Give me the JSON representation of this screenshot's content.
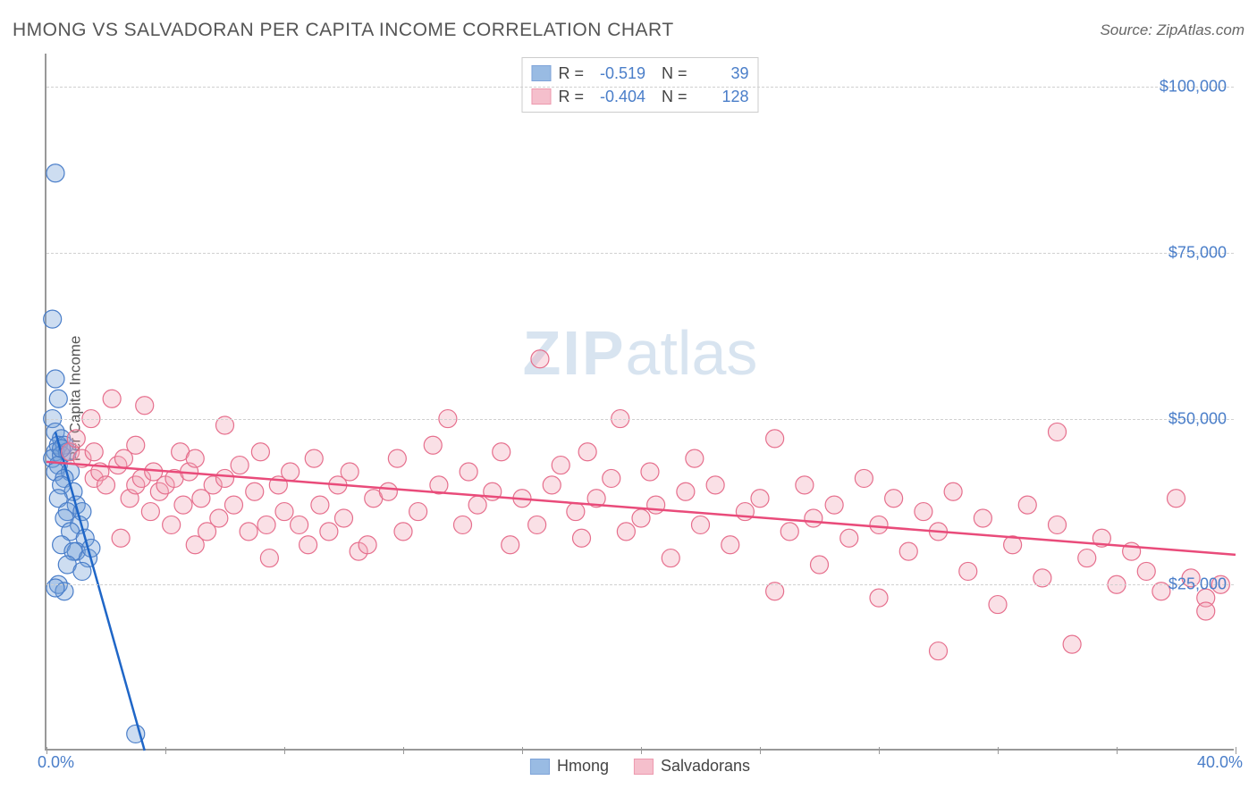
{
  "title": "HMONG VS SALVADORAN PER CAPITA INCOME CORRELATION CHART",
  "source_label": "Source: ZipAtlas.com",
  "watermark_zip": "ZIP",
  "watermark_rest": "atlas",
  "y_axis_title": "Per Capita Income",
  "chart": {
    "type": "scatter",
    "background_color": "#ffffff",
    "grid_color": "#d0d0d0",
    "axis_color": "#999999",
    "xlim": [
      0,
      40
    ],
    "ylim": [
      0,
      105000
    ],
    "x_tick_step": 4,
    "x_labels": {
      "min": "0.0%",
      "max": "40.0%"
    },
    "y_ticks": [
      25000,
      50000,
      75000,
      100000
    ],
    "y_tick_labels": [
      "$25,000",
      "$50,000",
      "$75,000",
      "$100,000"
    ],
    "marker_radius": 10,
    "marker_fill_opacity": 0.35,
    "series": [
      {
        "name": "Hmong",
        "color": "#6f9fd8",
        "stroke": "#4a7ec9",
        "line_color": "#1f66c7",
        "line_width": 2.5,
        "R": "-0.519",
        "N": "39",
        "trend": {
          "x1": 0.3,
          "y1": 48000,
          "x2": 3.3,
          "y2": 0
        },
        "points": [
          [
            0.3,
            87000
          ],
          [
            0.2,
            65000
          ],
          [
            0.3,
            56000
          ],
          [
            0.4,
            53000
          ],
          [
            0.2,
            50000
          ],
          [
            0.3,
            48000
          ],
          [
            0.5,
            47000
          ],
          [
            0.4,
            46000
          ],
          [
            0.6,
            46000
          ],
          [
            0.3,
            45000
          ],
          [
            0.2,
            44000
          ],
          [
            0.5,
            44500
          ],
          [
            0.7,
            45000
          ],
          [
            0.4,
            43000
          ],
          [
            0.3,
            42000
          ],
          [
            0.8,
            42000
          ],
          [
            0.6,
            41000
          ],
          [
            0.5,
            40000
          ],
          [
            0.9,
            39000
          ],
          [
            0.4,
            38000
          ],
          [
            1.0,
            37000
          ],
          [
            0.7,
            36000
          ],
          [
            1.2,
            36000
          ],
          [
            0.6,
            35000
          ],
          [
            1.1,
            34000
          ],
          [
            0.8,
            33000
          ],
          [
            1.3,
            32000
          ],
          [
            0.5,
            31000
          ],
          [
            1.0,
            30000
          ],
          [
            0.9,
            30000
          ],
          [
            1.4,
            29000
          ],
          [
            0.7,
            28000
          ],
          [
            1.2,
            27000
          ],
          [
            0.4,
            25000
          ],
          [
            0.6,
            24000
          ],
          [
            0.3,
            24500
          ],
          [
            1.5,
            30500
          ],
          [
            0.5,
            45500
          ],
          [
            3.0,
            2500
          ]
        ]
      },
      {
        "name": "Salvadorans",
        "color": "#f2a5b7",
        "stroke": "#e66f8d",
        "line_color": "#e94b7a",
        "line_width": 2.5,
        "R": "-0.404",
        "N": "128",
        "trend": {
          "x1": 0,
          "y1": 43500,
          "x2": 40,
          "y2": 29500
        },
        "points": [
          [
            0.8,
            45000
          ],
          [
            1.0,
            47000
          ],
          [
            1.2,
            44000
          ],
          [
            1.5,
            50000
          ],
          [
            1.6,
            45000
          ],
          [
            1.6,
            41000
          ],
          [
            1.8,
            42000
          ],
          [
            2.0,
            40000
          ],
          [
            2.2,
            53000
          ],
          [
            2.4,
            43000
          ],
          [
            2.5,
            32000
          ],
          [
            2.6,
            44000
          ],
          [
            2.8,
            38000
          ],
          [
            3.0,
            40000
          ],
          [
            3.0,
            46000
          ],
          [
            3.2,
            41000
          ],
          [
            3.3,
            52000
          ],
          [
            3.5,
            36000
          ],
          [
            3.6,
            42000
          ],
          [
            3.8,
            39000
          ],
          [
            4.0,
            40000
          ],
          [
            4.2,
            34000
          ],
          [
            4.3,
            41000
          ],
          [
            4.5,
            45000
          ],
          [
            4.6,
            37000
          ],
          [
            4.8,
            42000
          ],
          [
            5.0,
            44000
          ],
          [
            5.0,
            31000
          ],
          [
            5.2,
            38000
          ],
          [
            5.4,
            33000
          ],
          [
            5.6,
            40000
          ],
          [
            5.8,
            35000
          ],
          [
            6.0,
            41000
          ],
          [
            6.0,
            49000
          ],
          [
            6.3,
            37000
          ],
          [
            6.5,
            43000
          ],
          [
            6.8,
            33000
          ],
          [
            7.0,
            39000
          ],
          [
            7.2,
            45000
          ],
          [
            7.4,
            34000
          ],
          [
            7.5,
            29000
          ],
          [
            7.8,
            40000
          ],
          [
            8.0,
            36000
          ],
          [
            8.2,
            42000
          ],
          [
            8.5,
            34000
          ],
          [
            8.8,
            31000
          ],
          [
            9.0,
            44000
          ],
          [
            9.2,
            37000
          ],
          [
            9.5,
            33000
          ],
          [
            9.8,
            40000
          ],
          [
            10.0,
            35000
          ],
          [
            10.2,
            42000
          ],
          [
            10.5,
            30000
          ],
          [
            10.8,
            31000
          ],
          [
            11.0,
            38000
          ],
          [
            11.5,
            39000
          ],
          [
            11.8,
            44000
          ],
          [
            12.0,
            33000
          ],
          [
            12.5,
            36000
          ],
          [
            13.0,
            46000
          ],
          [
            13.2,
            40000
          ],
          [
            13.5,
            50000
          ],
          [
            14.0,
            34000
          ],
          [
            14.2,
            42000
          ],
          [
            14.5,
            37000
          ],
          [
            15.0,
            39000
          ],
          [
            15.3,
            45000
          ],
          [
            15.6,
            31000
          ],
          [
            16.0,
            38000
          ],
          [
            16.5,
            34000
          ],
          [
            16.6,
            59000
          ],
          [
            17.0,
            40000
          ],
          [
            17.3,
            43000
          ],
          [
            17.8,
            36000
          ],
          [
            18.0,
            32000
          ],
          [
            18.2,
            45000
          ],
          [
            18.5,
            38000
          ],
          [
            19.0,
            41000
          ],
          [
            19.3,
            50000
          ],
          [
            19.5,
            33000
          ],
          [
            20.0,
            35000
          ],
          [
            20.3,
            42000
          ],
          [
            20.5,
            37000
          ],
          [
            21.0,
            29000
          ],
          [
            21.5,
            39000
          ],
          [
            21.8,
            44000
          ],
          [
            22.0,
            34000
          ],
          [
            22.5,
            40000
          ],
          [
            23.0,
            31000
          ],
          [
            23.5,
            36000
          ],
          [
            24.0,
            38000
          ],
          [
            24.5,
            24000
          ],
          [
            24.5,
            47000
          ],
          [
            25.0,
            33000
          ],
          [
            25.5,
            40000
          ],
          [
            25.8,
            35000
          ],
          [
            26.0,
            28000
          ],
          [
            26.5,
            37000
          ],
          [
            27.0,
            32000
          ],
          [
            27.5,
            41000
          ],
          [
            28.0,
            34000
          ],
          [
            28.0,
            23000
          ],
          [
            28.5,
            38000
          ],
          [
            29.0,
            30000
          ],
          [
            29.5,
            36000
          ],
          [
            30.0,
            33000
          ],
          [
            30.0,
            15000
          ],
          [
            30.5,
            39000
          ],
          [
            31.0,
            27000
          ],
          [
            31.5,
            35000
          ],
          [
            32.0,
            22000
          ],
          [
            32.5,
            31000
          ],
          [
            33.0,
            37000
          ],
          [
            33.5,
            26000
          ],
          [
            34.0,
            34000
          ],
          [
            34.0,
            48000
          ],
          [
            34.5,
            16000
          ],
          [
            35.0,
            29000
          ],
          [
            35.5,
            32000
          ],
          [
            36.0,
            25000
          ],
          [
            36.5,
            30000
          ],
          [
            37.0,
            27000
          ],
          [
            37.5,
            24000
          ],
          [
            38.0,
            38000
          ],
          [
            38.5,
            26000
          ],
          [
            39.0,
            23000
          ],
          [
            39.0,
            21000
          ],
          [
            39.5,
            25000
          ]
        ]
      }
    ]
  },
  "legend_bottom": [
    "Hmong",
    "Salvadorans"
  ]
}
